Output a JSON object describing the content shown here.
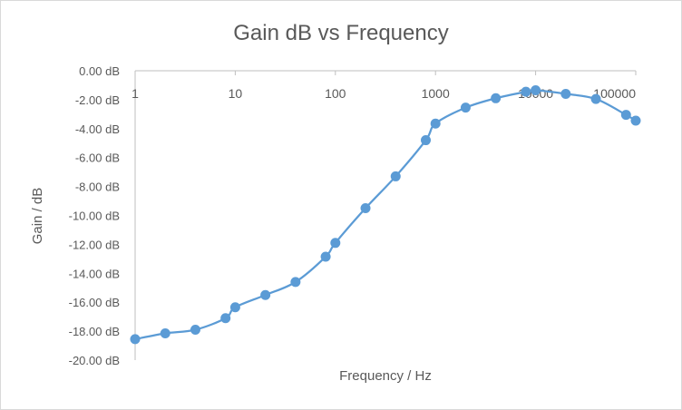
{
  "chart_data": {
    "type": "scatter",
    "title": "Gain dB vs Frequency",
    "xlabel": "Frequency / Hz",
    "ylabel": "Gain / dB",
    "x_scale": "log",
    "xlim": [
      1,
      100000
    ],
    "ylim": [
      -20,
      0
    ],
    "x_ticks": [
      1,
      10,
      100,
      1000,
      10000,
      100000
    ],
    "x_tick_labels": [
      "1",
      "10",
      "100",
      "1000",
      "10000",
      "100000"
    ],
    "y_ticks": [
      0,
      -2,
      -4,
      -6,
      -8,
      -10,
      -12,
      -14,
      -16,
      -18,
      -20
    ],
    "y_tick_labels": [
      "0.00 dB",
      "-2.00 dB",
      "-4.00 dB",
      "-6.00 dB",
      "-8.00 dB",
      "-10.00 dB",
      "-12.00 dB",
      "-14.00 dB",
      "-16.00 dB",
      "-18.00 dB",
      "-20.00 dB"
    ],
    "grid": false,
    "series": [
      {
        "color": "#5b9bd5",
        "line": "smooth",
        "marker": "circle",
        "x": [
          1,
          2,
          4,
          8,
          10,
          20,
          40,
          80,
          100,
          200,
          400,
          800,
          1000,
          2000,
          4000,
          8000,
          10000,
          20000,
          40000,
          80000,
          100000
        ],
        "y": [
          -18.55,
          -18.15,
          -17.9,
          -17.1,
          -16.35,
          -15.5,
          -14.6,
          -12.85,
          -11.9,
          -9.5,
          -7.3,
          -4.8,
          -3.65,
          -2.55,
          -1.9,
          -1.45,
          -1.35,
          -1.6,
          -1.95,
          -3.05,
          -3.45
        ]
      }
    ]
  }
}
